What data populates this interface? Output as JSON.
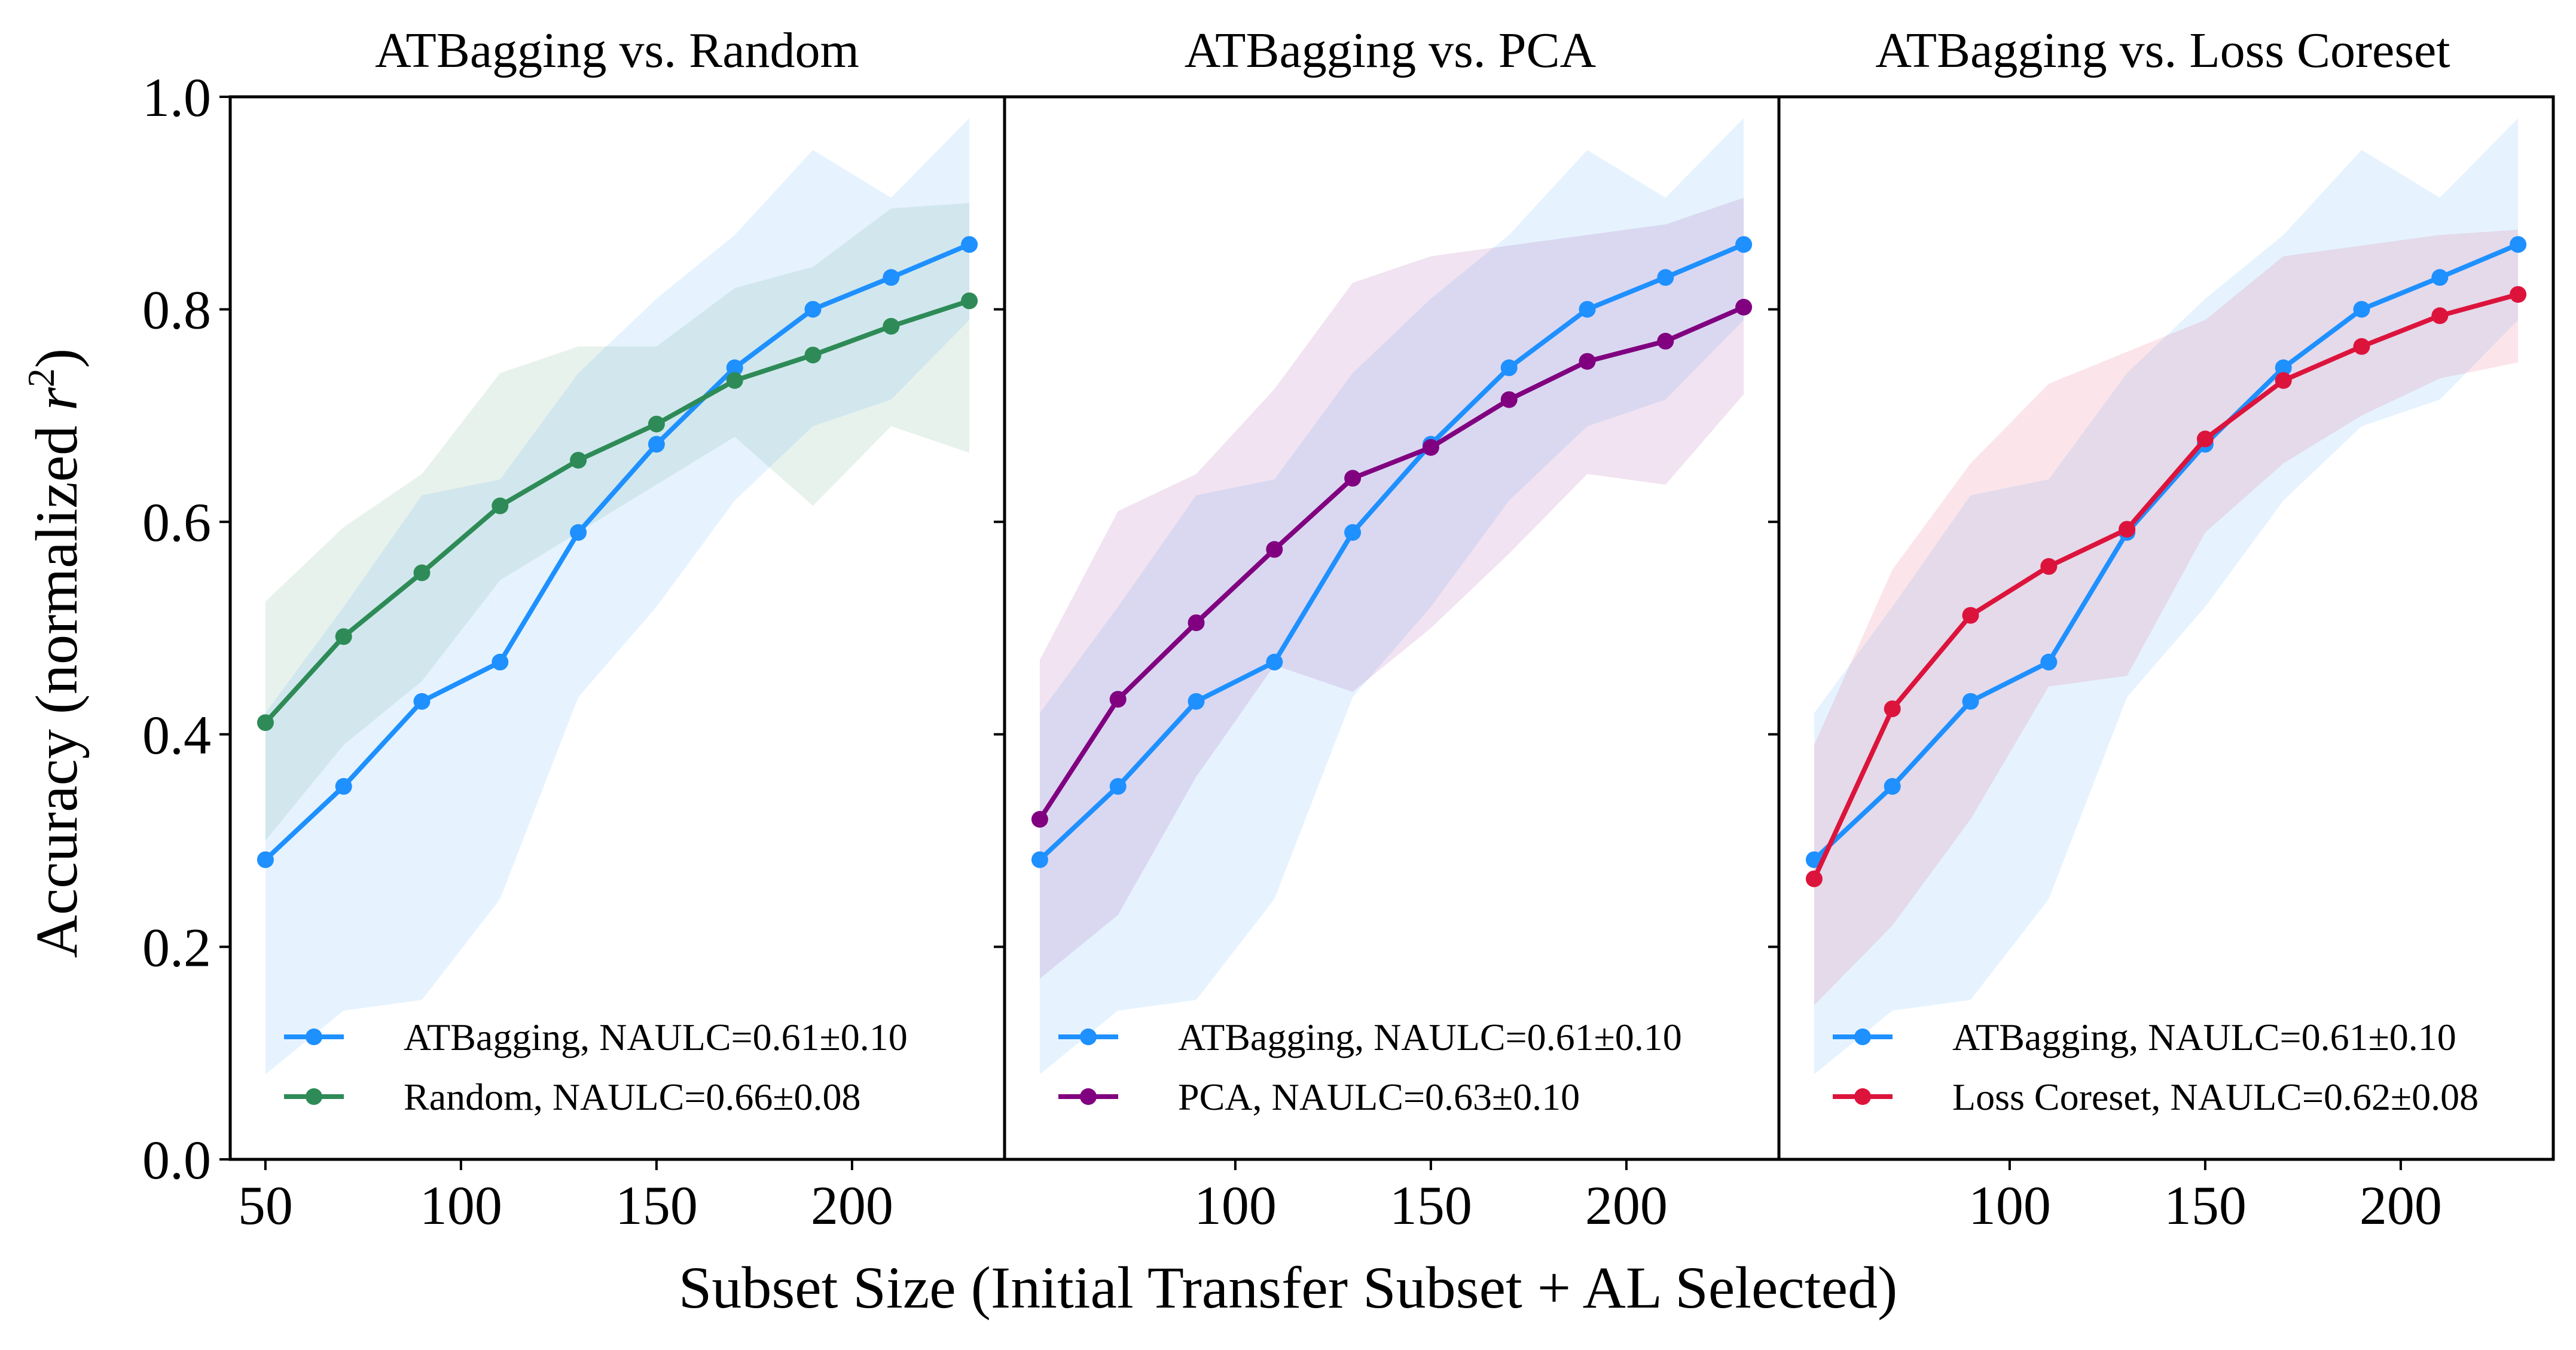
{
  "figure": {
    "ylabel_prefix": "Accuracy (normalized ",
    "ylabel_var": "r",
    "ylabel_exp": "2",
    "ylabel_suffix": ")",
    "xlabel": "Subset Size (Initial Transfer Subset + AL Selected)"
  },
  "chart_data": [
    {
      "type": "line",
      "title": "ATBagging vs. Random",
      "xlabel": "Subset Size (Initial Transfer Subset + AL Selected)",
      "ylabel": "Accuracy (normalized r^2)",
      "xlim": [
        41,
        239
      ],
      "ylim": [
        0.0,
        1.0
      ],
      "xticks": [
        50,
        100,
        150,
        200
      ],
      "yticks": [
        0.0,
        0.2,
        0.4,
        0.6,
        0.8,
        1.0
      ],
      "ytick_labels": [
        "0.0",
        "0.2",
        "0.4",
        "0.6",
        "0.8",
        "1.0"
      ],
      "show_yticklabels": true,
      "legend_position": "lower-right",
      "series": [
        {
          "name": "ATBagging, NAULC=0.61±0.10",
          "color": "#1e90ff",
          "x": [
            50,
            70,
            90,
            110,
            130,
            150,
            170,
            190,
            210,
            230
          ],
          "values": [
            0.282,
            0.351,
            0.431,
            0.468,
            0.59,
            0.673,
            0.745,
            0.8,
            0.83,
            0.861
          ],
          "lower": [
            0.08,
            0.14,
            0.15,
            0.245,
            0.435,
            0.52,
            0.62,
            0.69,
            0.715,
            0.79
          ],
          "upper": [
            0.42,
            0.52,
            0.625,
            0.64,
            0.74,
            0.81,
            0.87,
            0.95,
            0.905,
            0.98
          ]
        },
        {
          "name": "Random, NAULC=0.66±0.08",
          "color": "#2e8b57",
          "x": [
            50,
            70,
            90,
            110,
            130,
            150,
            170,
            190,
            210,
            230
          ],
          "values": [
            0.411,
            0.492,
            0.552,
            0.615,
            0.658,
            0.692,
            0.733,
            0.757,
            0.784,
            0.808
          ],
          "lower": [
            0.3,
            0.39,
            0.45,
            0.545,
            0.59,
            0.635,
            0.68,
            0.615,
            0.69,
            0.665
          ],
          "upper": [
            0.525,
            0.595,
            0.645,
            0.74,
            0.765,
            0.765,
            0.82,
            0.84,
            0.895,
            0.9
          ]
        }
      ]
    },
    {
      "type": "line",
      "title": "ATBagging vs. PCA",
      "xlabel": "",
      "ylabel": "",
      "xlim": [
        41,
        239
      ],
      "ylim": [
        0.0,
        1.0
      ],
      "xticks": [
        100,
        150,
        200
      ],
      "yticks": [
        0.0,
        0.2,
        0.4,
        0.6,
        0.8,
        1.0
      ],
      "ytick_labels": [],
      "show_yticklabels": false,
      "legend_position": "lower-right",
      "series": [
        {
          "name": "ATBagging, NAULC=0.61±0.10",
          "color": "#1e90ff",
          "x": [
            50,
            70,
            90,
            110,
            130,
            150,
            170,
            190,
            210,
            230
          ],
          "values": [
            0.282,
            0.351,
            0.431,
            0.468,
            0.59,
            0.673,
            0.745,
            0.8,
            0.83,
            0.861
          ],
          "lower": [
            0.08,
            0.14,
            0.15,
            0.245,
            0.435,
            0.52,
            0.62,
            0.69,
            0.715,
            0.79
          ],
          "upper": [
            0.42,
            0.52,
            0.625,
            0.64,
            0.74,
            0.81,
            0.87,
            0.95,
            0.905,
            0.98
          ]
        },
        {
          "name": "PCA, NAULC=0.63±0.10",
          "color": "#800080",
          "x": [
            50,
            70,
            90,
            110,
            130,
            150,
            170,
            190,
            210,
            230
          ],
          "values": [
            0.32,
            0.433,
            0.505,
            0.574,
            0.641,
            0.67,
            0.715,
            0.751,
            0.77,
            0.802
          ],
          "lower": [
            0.17,
            0.23,
            0.36,
            0.465,
            0.44,
            0.5,
            0.57,
            0.645,
            0.635,
            0.72
          ],
          "upper": [
            0.47,
            0.61,
            0.645,
            0.725,
            0.825,
            0.85,
            0.86,
            0.87,
            0.88,
            0.905
          ]
        }
      ]
    },
    {
      "type": "line",
      "title": "ATBagging vs. Loss Coreset",
      "xlabel": "",
      "ylabel": "",
      "xlim": [
        41,
        239
      ],
      "ylim": [
        0.0,
        1.0
      ],
      "xticks": [
        100,
        150,
        200
      ],
      "yticks": [
        0.0,
        0.2,
        0.4,
        0.6,
        0.8,
        1.0
      ],
      "ytick_labels": [],
      "show_yticklabels": false,
      "legend_position": "lower-right",
      "series": [
        {
          "name": "ATBagging, NAULC=0.61±0.10",
          "color": "#1e90ff",
          "x": [
            50,
            70,
            90,
            110,
            130,
            150,
            170,
            190,
            210,
            230
          ],
          "values": [
            0.282,
            0.351,
            0.431,
            0.468,
            0.59,
            0.673,
            0.745,
            0.8,
            0.83,
            0.861
          ],
          "lower": [
            0.08,
            0.14,
            0.15,
            0.245,
            0.435,
            0.52,
            0.62,
            0.69,
            0.715,
            0.79
          ],
          "upper": [
            0.42,
            0.52,
            0.625,
            0.64,
            0.74,
            0.81,
            0.87,
            0.95,
            0.905,
            0.98
          ]
        },
        {
          "name": "Loss Coreset, NAULC=0.62±0.08",
          "color": "#dc143c",
          "x": [
            50,
            70,
            90,
            110,
            130,
            150,
            170,
            190,
            210,
            230
          ],
          "values": [
            0.264,
            0.424,
            0.512,
            0.558,
            0.593,
            0.678,
            0.733,
            0.765,
            0.794,
            0.814
          ],
          "lower": [
            0.145,
            0.22,
            0.32,
            0.445,
            0.455,
            0.59,
            0.655,
            0.7,
            0.735,
            0.75
          ],
          "upper": [
            0.39,
            0.555,
            0.655,
            0.73,
            0.76,
            0.79,
            0.85,
            0.86,
            0.87,
            0.875
          ]
        }
      ]
    }
  ]
}
